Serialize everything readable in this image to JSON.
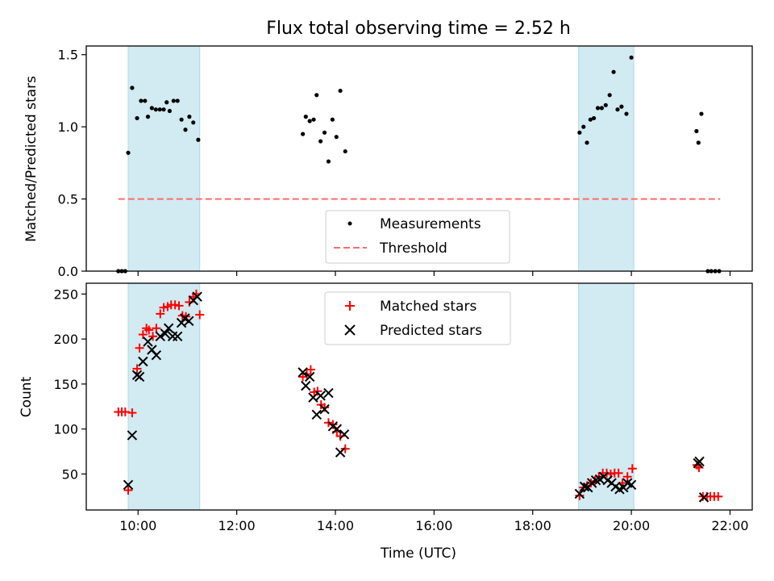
{
  "figure": {
    "title": "Flux total observing time = 2.52 h",
    "xlabel": "Time (UTC)"
  },
  "colors": {
    "band": "#add8e6",
    "measurement": "#000000",
    "threshold": "#ff6b6b",
    "matched": "#ff0000",
    "predicted": "#000000"
  },
  "chart_data": [
    {
      "type": "scatter",
      "ylabel": "Matched/Predicted stars",
      "xlim": [
        8.95,
        22.45
      ],
      "ylim": [
        0,
        1.56
      ],
      "x_unit": "hours UTC",
      "xticks": [
        10,
        12,
        14,
        16,
        18,
        20,
        22
      ],
      "xtick_labels": [
        "10:00",
        "12:00",
        "14:00",
        "16:00",
        "18:00",
        "20:00",
        "22:00"
      ],
      "yticks": [
        0,
        0.5,
        1.0,
        1.5
      ],
      "ytick_labels": [
        "0.0",
        "0.5",
        "1.0",
        "1.5"
      ],
      "shaded_intervals": [
        [
          9.8,
          11.25
        ],
        [
          18.93,
          20.05
        ]
      ],
      "legend": {
        "position": "lower center",
        "labels": [
          "Measurements",
          "Threshold"
        ]
      },
      "threshold": {
        "name": "Threshold",
        "value": 0.5,
        "x_range": [
          9.6,
          21.8
        ]
      },
      "series": [
        {
          "name": "Measurements",
          "marker": "dot",
          "points": [
            [
              9.6,
              0
            ],
            [
              9.67,
              0
            ],
            [
              9.74,
              0
            ],
            [
              9.8,
              0.82
            ],
            [
              9.88,
              1.27
            ],
            [
              9.98,
              1.06
            ],
            [
              10.06,
              1.18
            ],
            [
              10.14,
              1.18
            ],
            [
              10.2,
              1.07
            ],
            [
              10.28,
              1.13
            ],
            [
              10.36,
              1.12
            ],
            [
              10.44,
              1.12
            ],
            [
              10.52,
              1.12
            ],
            [
              10.58,
              1.17
            ],
            [
              10.64,
              1.11
            ],
            [
              10.72,
              1.18
            ],
            [
              10.8,
              1.18
            ],
            [
              10.88,
              1.05
            ],
            [
              10.96,
              0.98
            ],
            [
              11.04,
              1.07
            ],
            [
              11.12,
              1.03
            ],
            [
              11.22,
              0.91
            ],
            [
              13.34,
              0.95
            ],
            [
              13.4,
              1.07
            ],
            [
              13.48,
              1.04
            ],
            [
              13.56,
              1.05
            ],
            [
              13.62,
              1.22
            ],
            [
              13.7,
              0.9
            ],
            [
              13.78,
              0.96
            ],
            [
              13.86,
              0.76
            ],
            [
              13.94,
              1.05
            ],
            [
              14.02,
              0.93
            ],
            [
              14.1,
              1.25
            ],
            [
              14.2,
              0.83
            ],
            [
              18.95,
              0.96
            ],
            [
              19.03,
              1.0
            ],
            [
              19.1,
              0.89
            ],
            [
              19.17,
              1.05
            ],
            [
              19.24,
              1.06
            ],
            [
              19.32,
              1.13
            ],
            [
              19.4,
              1.13
            ],
            [
              19.48,
              1.15
            ],
            [
              19.56,
              1.22
            ],
            [
              19.64,
              1.38
            ],
            [
              19.72,
              1.12
            ],
            [
              19.8,
              1.14
            ],
            [
              19.9,
              1.09
            ],
            [
              20.0,
              1.48
            ],
            [
              21.32,
              0.97
            ],
            [
              21.36,
              0.89
            ],
            [
              21.42,
              1.09
            ],
            [
              21.55,
              0
            ],
            [
              21.62,
              0
            ],
            [
              21.7,
              0
            ],
            [
              21.78,
              0
            ]
          ]
        }
      ]
    },
    {
      "type": "scatter",
      "ylabel": "Count",
      "xlabel": "Time (UTC)",
      "xlim": [
        8.95,
        22.45
      ],
      "ylim": [
        10,
        262
      ],
      "x_unit": "hours UTC",
      "xticks": [
        10,
        12,
        14,
        16,
        18,
        20,
        22
      ],
      "xtick_labels": [
        "10:00",
        "12:00",
        "14:00",
        "16:00",
        "18:00",
        "20:00",
        "22:00"
      ],
      "yticks": [
        50,
        100,
        150,
        200,
        250
      ],
      "ytick_labels": [
        "50",
        "100",
        "150",
        "200",
        "250"
      ],
      "shaded_intervals": [
        [
          9.8,
          11.25
        ],
        [
          18.93,
          20.05
        ]
      ],
      "legend": {
        "position": "upper center",
        "labels": [
          "Matched stars",
          "Predicted stars"
        ]
      },
      "series": [
        {
          "name": "Matched stars",
          "marker": "plus",
          "points": [
            [
              9.6,
              119
            ],
            [
              9.67,
              119
            ],
            [
              9.74,
              119
            ],
            [
              9.8,
              32
            ],
            [
              9.88,
              118
            ],
            [
              9.98,
              167
            ],
            [
              10.03,
              190
            ],
            [
              10.1,
              205
            ],
            [
              10.17,
              212
            ],
            [
              10.22,
              210
            ],
            [
              10.3,
              203
            ],
            [
              10.37,
              212
            ],
            [
              10.45,
              228
            ],
            [
              10.52,
              235
            ],
            [
              10.6,
              236
            ],
            [
              10.67,
              238
            ],
            [
              10.75,
              238
            ],
            [
              10.83,
              237
            ],
            [
              10.9,
              226
            ],
            [
              10.97,
              225
            ],
            [
              11.04,
              241
            ],
            [
              11.12,
              247
            ],
            [
              11.18,
              250
            ],
            [
              11.25,
              227
            ],
            [
              13.34,
              158
            ],
            [
              13.42,
              161
            ],
            [
              13.5,
              166
            ],
            [
              13.57,
              141
            ],
            [
              13.64,
              142
            ],
            [
              13.71,
              127
            ],
            [
              13.78,
              124
            ],
            [
              13.86,
              107
            ],
            [
              13.95,
              105
            ],
            [
              14.03,
              97
            ],
            [
              14.1,
              92
            ],
            [
              14.2,
              78
            ],
            [
              18.95,
              26
            ],
            [
              19.03,
              35
            ],
            [
              19.1,
              37
            ],
            [
              19.18,
              40
            ],
            [
              19.26,
              42
            ],
            [
              19.34,
              47
            ],
            [
              19.42,
              51
            ],
            [
              19.5,
              51
            ],
            [
              19.58,
              50
            ],
            [
              19.66,
              51
            ],
            [
              19.74,
              51
            ],
            [
              19.82,
              40
            ],
            [
              19.92,
              47
            ],
            [
              20.02,
              56
            ],
            [
              21.33,
              60
            ],
            [
              21.37,
              57
            ],
            [
              21.45,
              25
            ],
            [
              21.53,
              25
            ],
            [
              21.6,
              25
            ],
            [
              21.68,
              25
            ],
            [
              21.76,
              25
            ]
          ]
        },
        {
          "name": "Predicted stars",
          "marker": "x",
          "points": [
            [
              9.8,
              38
            ],
            [
              9.88,
              93
            ],
            [
              9.98,
              160
            ],
            [
              10.03,
              158
            ],
            [
              10.1,
              175
            ],
            [
              10.2,
              197
            ],
            [
              10.28,
              188
            ],
            [
              10.37,
              182
            ],
            [
              10.45,
              203
            ],
            [
              10.55,
              206
            ],
            [
              10.62,
              212
            ],
            [
              10.7,
              203
            ],
            [
              10.8,
              203
            ],
            [
              10.88,
              218
            ],
            [
              10.95,
              223
            ],
            [
              11.03,
              220
            ],
            [
              11.12,
              243
            ],
            [
              11.2,
              247
            ],
            [
              13.34,
              163
            ],
            [
              13.4,
              148
            ],
            [
              13.48,
              158
            ],
            [
              13.55,
              135
            ],
            [
              13.62,
              116
            ],
            [
              13.7,
              137
            ],
            [
              13.78,
              122
            ],
            [
              13.86,
              140
            ],
            [
              13.95,
              103
            ],
            [
              14.03,
              100
            ],
            [
              14.1,
              74
            ],
            [
              14.18,
              94
            ],
            [
              18.95,
              28
            ],
            [
              19.05,
              36
            ],
            [
              19.12,
              35
            ],
            [
              19.2,
              40
            ],
            [
              19.28,
              43
            ],
            [
              19.36,
              44
            ],
            [
              19.44,
              47
            ],
            [
              19.52,
              43
            ],
            [
              19.6,
              40
            ],
            [
              19.68,
              36
            ],
            [
              19.76,
              33
            ],
            [
              19.84,
              35
            ],
            [
              19.92,
              40
            ],
            [
              20.0,
              38
            ],
            [
              21.35,
              62
            ],
            [
              21.38,
              64
            ],
            [
              21.47,
              24
            ]
          ]
        }
      ]
    }
  ]
}
